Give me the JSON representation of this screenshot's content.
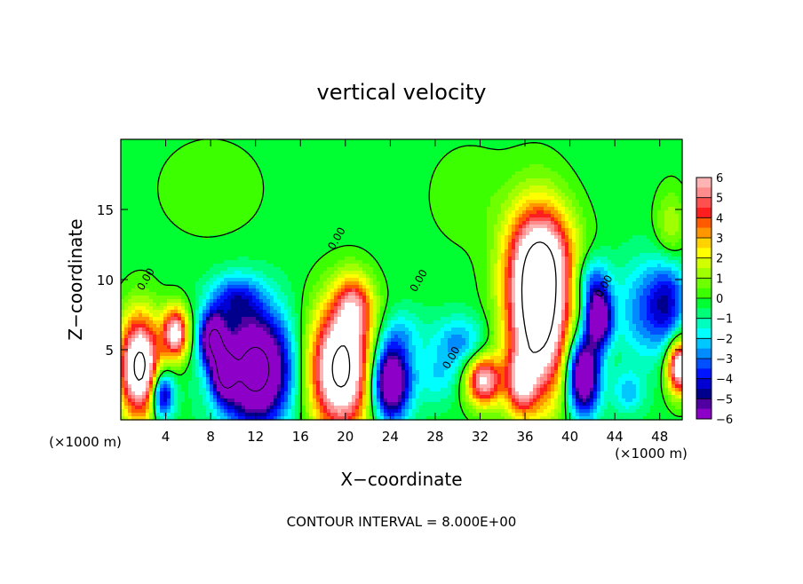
{
  "chart_data": {
    "type": "heatmap",
    "title": "vertical velocity",
    "xlabel": "X−coordinate",
    "ylabel": "Z−coordinate",
    "x_unit_left": "(×1000 m)",
    "x_unit_right": "(×1000 m)",
    "footer": "CONTOUR INTERVAL = 8.000E+00",
    "xlim": [
      0,
      50
    ],
    "ylim": [
      0,
      20
    ],
    "x_ticks": [
      4,
      8,
      12,
      16,
      20,
      24,
      28,
      32,
      36,
      40,
      44,
      48
    ],
    "y_ticks": [
      5,
      10,
      15
    ],
    "x_tick_labels": [
      "4",
      "8",
      "12",
      "16",
      "20",
      "24",
      "28",
      "32",
      "36",
      "40",
      "44",
      "48"
    ],
    "y_tick_labels": [
      "5",
      "10",
      "15"
    ],
    "contour_interval": 8,
    "contour_labels": [
      {
        "text": "0.00",
        "x": 2.5,
        "y": 9.9
      },
      {
        "text": "0.00",
        "x": 19.5,
        "y": 12.8
      },
      {
        "text": "0.00",
        "x": 26.8,
        "y": 9.8
      },
      {
        "text": "0.00",
        "x": 29.7,
        "y": 4.3
      },
      {
        "text": "0.00",
        "x": 43.3,
        "y": 9.4
      }
    ],
    "colorbar": {
      "range": [
        -6,
        6
      ],
      "tick_values": [
        6,
        5,
        4,
        3,
        2,
        1,
        0,
        -1,
        -2,
        -3,
        -4,
        -5,
        -6
      ],
      "tick_labels": [
        "6",
        "5",
        "4",
        "3",
        "2",
        "1",
        "0",
        "−1",
        "−2",
        "−3",
        "−4",
        "−5",
        "−6"
      ],
      "bins": [
        {
          "lo": 5.5,
          "hi": 6,
          "color": "#ffb4b4"
        },
        {
          "lo": 5,
          "hi": 5.5,
          "color": "#ff8c8c"
        },
        {
          "lo": 4.5,
          "hi": 5,
          "color": "#ff5050"
        },
        {
          "lo": 4,
          "hi": 4.5,
          "color": "#ff1e1e"
        },
        {
          "lo": 3.5,
          "hi": 4,
          "color": "#ff5a00"
        },
        {
          "lo": 3,
          "hi": 3.5,
          "color": "#ff9600"
        },
        {
          "lo": 2.5,
          "hi": 3,
          "color": "#ffd200"
        },
        {
          "lo": 2,
          "hi": 2.5,
          "color": "#ffff00"
        },
        {
          "lo": 1.5,
          "hi": 2,
          "color": "#d2ff00"
        },
        {
          "lo": 1,
          "hi": 1.5,
          "color": "#a0ff00"
        },
        {
          "lo": 0.5,
          "hi": 1,
          "color": "#6eff00"
        },
        {
          "lo": 0,
          "hi": 0.5,
          "color": "#3cff00"
        },
        {
          "lo": -0.5,
          "hi": 0,
          "color": "#00ff32"
        },
        {
          "lo": -1,
          "hi": -0.5,
          "color": "#00ff78"
        },
        {
          "lo": -1.5,
          "hi": -1,
          "color": "#00ffbe"
        },
        {
          "lo": -2,
          "hi": -1.5,
          "color": "#00ffff"
        },
        {
          "lo": -2.5,
          "hi": -2,
          "color": "#00c8ff"
        },
        {
          "lo": -3,
          "hi": -2.5,
          "color": "#008cff"
        },
        {
          "lo": -3.5,
          "hi": -3,
          "color": "#0050ff"
        },
        {
          "lo": -4,
          "hi": -3.5,
          "color": "#0014ff"
        },
        {
          "lo": -4.5,
          "hi": -4,
          "color": "#0000d2"
        },
        {
          "lo": -5,
          "hi": -4.5,
          "color": "#00008c"
        },
        {
          "lo": -5.5,
          "hi": -5,
          "color": "#5000a0"
        },
        {
          "lo": -6,
          "hi": -5.5,
          "color": "#8c00c8"
        }
      ]
    },
    "field": {
      "background": -0.3,
      "blobs": [
        {
          "cx": 1.7,
          "cz": 3.8,
          "sx": 1.3,
          "sz": 2.6,
          "amp": 9
        },
        {
          "cx": 4.9,
          "cz": 6.2,
          "sx": 0.8,
          "sz": 1.3,
          "amp": 7
        },
        {
          "cx": 3.7,
          "cz": 1.8,
          "sx": 0.7,
          "sz": 1.2,
          "amp": -6
        },
        {
          "cx": 8.2,
          "cz": 5.8,
          "sx": 0.8,
          "sz": 1.3,
          "amp": -7
        },
        {
          "cx": 12.0,
          "cz": 3.6,
          "sx": 2.2,
          "sz": 2.8,
          "amp": -9
        },
        {
          "cx": 9.2,
          "cz": 3.3,
          "sx": 0.7,
          "sz": 1.2,
          "amp": -5.5
        },
        {
          "cx": 10.2,
          "cz": 8.7,
          "sx": 1.6,
          "sz": 1.2,
          "amp": -3
        },
        {
          "cx": 19.6,
          "cz": 3.6,
          "sx": 2.0,
          "sz": 3.2,
          "amp": 9
        },
        {
          "cx": 20.8,
          "cz": 8.2,
          "sx": 1.2,
          "sz": 1.6,
          "amp": 4
        },
        {
          "cx": 24.0,
          "cz": 2.7,
          "sx": 1.2,
          "sz": 1.9,
          "amp": -8
        },
        {
          "cx": 25.0,
          "cz": 6.2,
          "sx": 1.4,
          "sz": 1.2,
          "amp": -1.5
        },
        {
          "cx": 30.2,
          "cz": 5.5,
          "sx": 1.7,
          "sz": 1.3,
          "amp": -2.5
        },
        {
          "cx": 28.2,
          "cz": 3.0,
          "sx": 1.4,
          "sz": 1.3,
          "amp": -1.5
        },
        {
          "cx": 32.3,
          "cz": 2.8,
          "sx": 1.1,
          "sz": 1.3,
          "amp": 6.5
        },
        {
          "cx": 37.2,
          "cz": 7.8,
          "sx": 2.0,
          "sz": 4.4,
          "amp": 10
        },
        {
          "cx": 37.6,
          "cz": 12.0,
          "sx": 2.2,
          "sz": 2.4,
          "amp": 3
        },
        {
          "cx": 35.6,
          "cz": 2.5,
          "sx": 0.9,
          "sz": 1.5,
          "amp": 4
        },
        {
          "cx": 41.2,
          "cz": 3.2,
          "sx": 1.0,
          "sz": 2.0,
          "amp": -8
        },
        {
          "cx": 42.6,
          "cz": 7.2,
          "sx": 0.8,
          "sz": 1.4,
          "amp": -7
        },
        {
          "cx": 42.0,
          "cz": 9.8,
          "sx": 1.1,
          "sz": 1.4,
          "amp": -3
        },
        {
          "cx": 46.5,
          "cz": 7.8,
          "sx": 1.6,
          "sz": 2.4,
          "amp": -2.5
        },
        {
          "cx": 49.8,
          "cz": 3.8,
          "sx": 0.8,
          "sz": 1.4,
          "amp": 8
        },
        {
          "cx": 48.8,
          "cz": 8.5,
          "sx": 1.2,
          "sz": 2.4,
          "amp": -3.5
        },
        {
          "cx": 49.0,
          "cz": 13.5,
          "sx": 1.0,
          "sz": 2.0,
          "amp": 2.0
        },
        {
          "cx": 45.2,
          "cz": 2.0,
          "sx": 1.0,
          "sz": 1.1,
          "amp": -2.0
        },
        {
          "cx": 8.0,
          "cz": 16.5,
          "sx": 4.0,
          "sz": 3.0,
          "amp": 0.6
        },
        {
          "cx": 31.0,
          "cz": 16.0,
          "sx": 3.0,
          "sz": 3.0,
          "amp": 0.6
        }
      ]
    }
  }
}
